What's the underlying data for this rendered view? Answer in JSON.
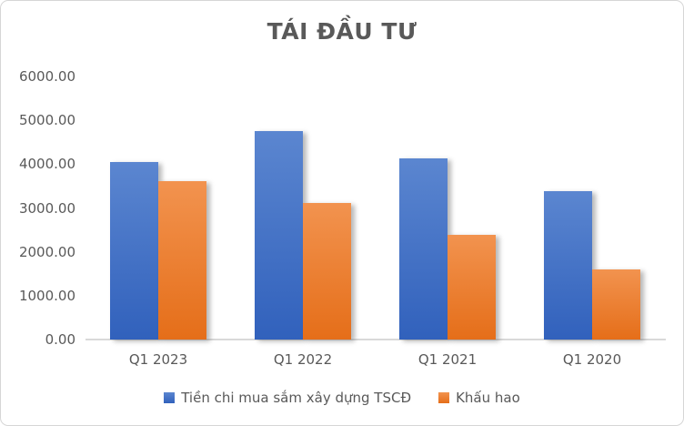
{
  "chart_data": {
    "type": "bar",
    "title": "TÁI ĐẦU TƯ",
    "categories": [
      "Q1 2023",
      "Q1 2022",
      "Q1 2021",
      "Q1 2020"
    ],
    "series": [
      {
        "name": "Tiền chi mua sắm xây dựng TSCĐ",
        "key": "tien-chi-mua-sam-xay-dung-tscd",
        "color": "#4472C4",
        "fill_top": "#5B86D0",
        "fill_bottom": "#3161BC",
        "values": [
          4050,
          4750,
          4130,
          3380
        ]
      },
      {
        "name": "Khấu hao",
        "key": "khau-hao",
        "color": "#ED7D31",
        "fill_top": "#F2934F",
        "fill_bottom": "#E56E19",
        "values": [
          3610,
          3110,
          2390,
          1600
        ]
      }
    ],
    "xlabel": "",
    "ylabel": "",
    "ylim": [
      0,
      6000
    ],
    "ytick_step": 1000,
    "ytick_labels": [
      "0.00",
      "1000.00",
      "2000.00",
      "3000.00",
      "4000.00",
      "5000.00",
      "6000.00"
    ],
    "grid": false,
    "legend_position": "bottom"
  },
  "style": {
    "title_color": "#595959",
    "label_color": "#595959",
    "axis_line_color": "#D9D9D9",
    "border_color": "#D6D6D6",
    "background": "#FFFFFF"
  }
}
